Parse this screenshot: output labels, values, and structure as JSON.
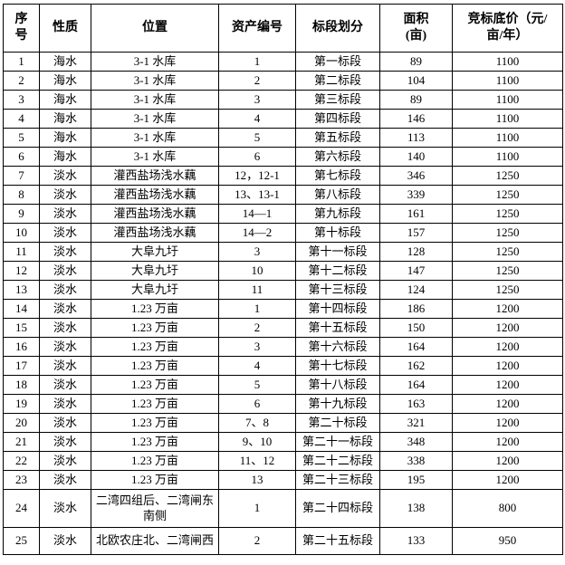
{
  "table": {
    "headers": [
      "序\n号",
      "性质",
      "位置",
      "资产编号",
      "标段划分",
      "面积\n(亩)",
      "竞标底价（元/\n亩/年）"
    ],
    "column_keys": [
      "serial",
      "nature",
      "location",
      "asset_number",
      "section",
      "area_mu",
      "base_price_yuan_per_mu_year"
    ],
    "rows": [
      [
        "1",
        "海水",
        "3-1 水库",
        "1",
        "第一标段",
        "89",
        "1100"
      ],
      [
        "2",
        "海水",
        "3-1 水库",
        "2",
        "第二标段",
        "104",
        "1100"
      ],
      [
        "3",
        "海水",
        "3-1 水库",
        "3",
        "第三标段",
        "89",
        "1100"
      ],
      [
        "4",
        "海水",
        "3-1 水库",
        "4",
        "第四标段",
        "146",
        "1100"
      ],
      [
        "5",
        "海水",
        "3-1 水库",
        "5",
        "第五标段",
        "113",
        "1100"
      ],
      [
        "6",
        "海水",
        "3-1 水库",
        "6",
        "第六标段",
        "140",
        "1100"
      ],
      [
        "7",
        "淡水",
        "灌西盐场浅水藕",
        "12，12-1",
        "第七标段",
        "346",
        "1250"
      ],
      [
        "8",
        "淡水",
        "灌西盐场浅水藕",
        "13、13-1",
        "第八标段",
        "339",
        "1250"
      ],
      [
        "9",
        "淡水",
        "灌西盐场浅水藕",
        "14—1",
        "第九标段",
        "161",
        "1250"
      ],
      [
        "10",
        "淡水",
        "灌西盐场浅水藕",
        "14—2",
        "第十标段",
        "157",
        "1250"
      ],
      [
        "11",
        "淡水",
        "大阜九圩",
        "3",
        "第十一标段",
        "128",
        "1250"
      ],
      [
        "12",
        "淡水",
        "大阜九圩",
        "10",
        "第十二标段",
        "147",
        "1250"
      ],
      [
        "13",
        "淡水",
        "大阜九圩",
        "11",
        "第十三标段",
        "124",
        "1250"
      ],
      [
        "14",
        "淡水",
        "1.23 万亩",
        "1",
        "第十四标段",
        "186",
        "1200"
      ],
      [
        "15",
        "淡水",
        "1.23 万亩",
        "2",
        "第十五标段",
        "150",
        "1200"
      ],
      [
        "16",
        "淡水",
        "1.23 万亩",
        "3",
        "第十六标段",
        "164",
        "1200"
      ],
      [
        "17",
        "淡水",
        "1.23 万亩",
        "4",
        "第十七标段",
        "162",
        "1200"
      ],
      [
        "18",
        "淡水",
        "1.23 万亩",
        "5",
        "第十八标段",
        "164",
        "1200"
      ],
      [
        "19",
        "淡水",
        "1.23 万亩",
        "6",
        "第十九标段",
        "163",
        "1200"
      ],
      [
        "20",
        "淡水",
        "1.23 万亩",
        "7、8",
        "第二十标段",
        "321",
        "1200"
      ],
      [
        "21",
        "淡水",
        "1.23 万亩",
        "9、10",
        "第二十一标段",
        "348",
        "1200"
      ],
      [
        "22",
        "淡水",
        "1.23 万亩",
        "11、12",
        "第二十二标段",
        "338",
        "1200"
      ],
      [
        "23",
        "淡水",
        "1.23 万亩",
        "13",
        "第二十三标段",
        "195",
        "1200"
      ],
      [
        "24",
        "淡水",
        "二湾四组后、二湾闸东南侧",
        "1",
        "第二十四标段",
        "138",
        "800"
      ],
      [
        "25",
        "淡水",
        "北欧农庄北、二湾闸西",
        "2",
        "第二十五标段",
        "133",
        "950"
      ]
    ],
    "colors": {
      "text": "#000000",
      "border": "#000000",
      "background": "#ffffff"
    }
  }
}
